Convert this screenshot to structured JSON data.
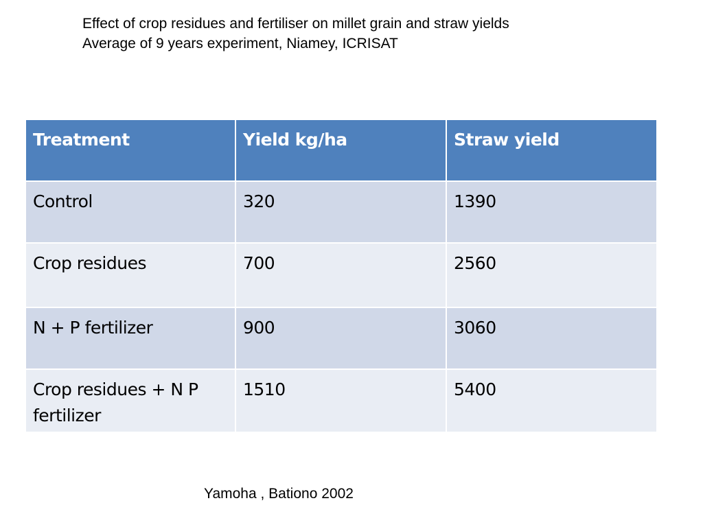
{
  "title": {
    "line1": "Effect of crop residues and fertiliser on millet grain and straw yields",
    "line2": "Average of 9 years experiment, Niamey, ICRISAT"
  },
  "table": {
    "headers": [
      "Treatment",
      "Yield kg/ha",
      "Straw yield"
    ],
    "rows": [
      [
        "Control",
        "320",
        "1390"
      ],
      [
        "Crop residues",
        "700",
        "2560"
      ],
      [
        "N + P fertilizer",
        "900",
        "3060"
      ],
      [
        "Crop residues + N P fertilizer",
        "1510",
        "5400"
      ]
    ]
  },
  "citation": "Yamoha , Bationo 2002",
  "colors": {
    "header_bg": "#4f81bd",
    "row_band_dark": "#d0d8e8",
    "row_band_light": "#e9edf4"
  }
}
